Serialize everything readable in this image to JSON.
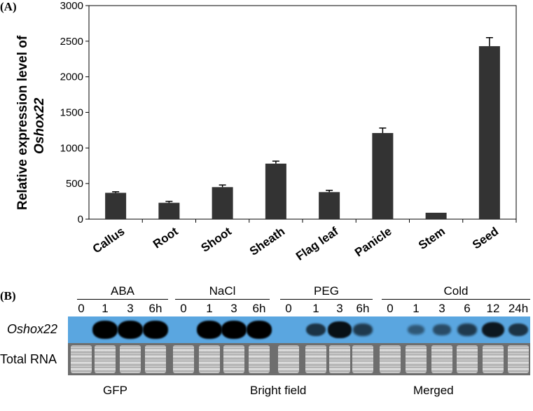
{
  "panel_a": {
    "label": "(A)",
    "chart_data": {
      "type": "bar",
      "title": "",
      "xlabel": "",
      "ylabel_line1": "Relative expression level of",
      "ylabel_line2": "Oshox22",
      "categories": [
        "Callus",
        "Root",
        "Shoot",
        "Sheath",
        "Flag leaf",
        "Panicle",
        "Stem",
        "Seed"
      ],
      "values": [
        370,
        230,
        450,
        780,
        380,
        1210,
        90,
        2430
      ],
      "errors": [
        15,
        20,
        30,
        35,
        25,
        70,
        0,
        120
      ],
      "ylim": [
        0,
        3000
      ],
      "yticks": [
        0,
        500,
        1000,
        1500,
        2000,
        2500,
        3000
      ],
      "bar_color": "#333333"
    }
  },
  "panel_b": {
    "label": "(B)",
    "row_labels": {
      "blot": "Oshox22",
      "rna": "Total RNA"
    },
    "groups": [
      {
        "name": "ABA",
        "timepoints": [
          "0",
          "1",
          "3",
          "6h"
        ],
        "intensity": [
          0.0,
          1.0,
          1.0,
          1.0
        ]
      },
      {
        "name": "NaCl",
        "timepoints": [
          "0",
          "1",
          "3",
          "6h"
        ],
        "intensity": [
          0.0,
          1.0,
          1.0,
          1.0
        ]
      },
      {
        "name": "PEG",
        "timepoints": [
          "0",
          "1",
          "3",
          "6h"
        ],
        "intensity": [
          0.0,
          0.55,
          0.85,
          0.5
        ]
      },
      {
        "name": "Cold",
        "timepoints": [
          "0",
          "1",
          "3",
          "6",
          "12",
          "24h"
        ],
        "intensity": [
          0.0,
          0.25,
          0.35,
          0.5,
          0.8,
          0.55
        ]
      }
    ]
  },
  "bottom_labels": [
    "GFP",
    "Bright field",
    "Merged"
  ]
}
